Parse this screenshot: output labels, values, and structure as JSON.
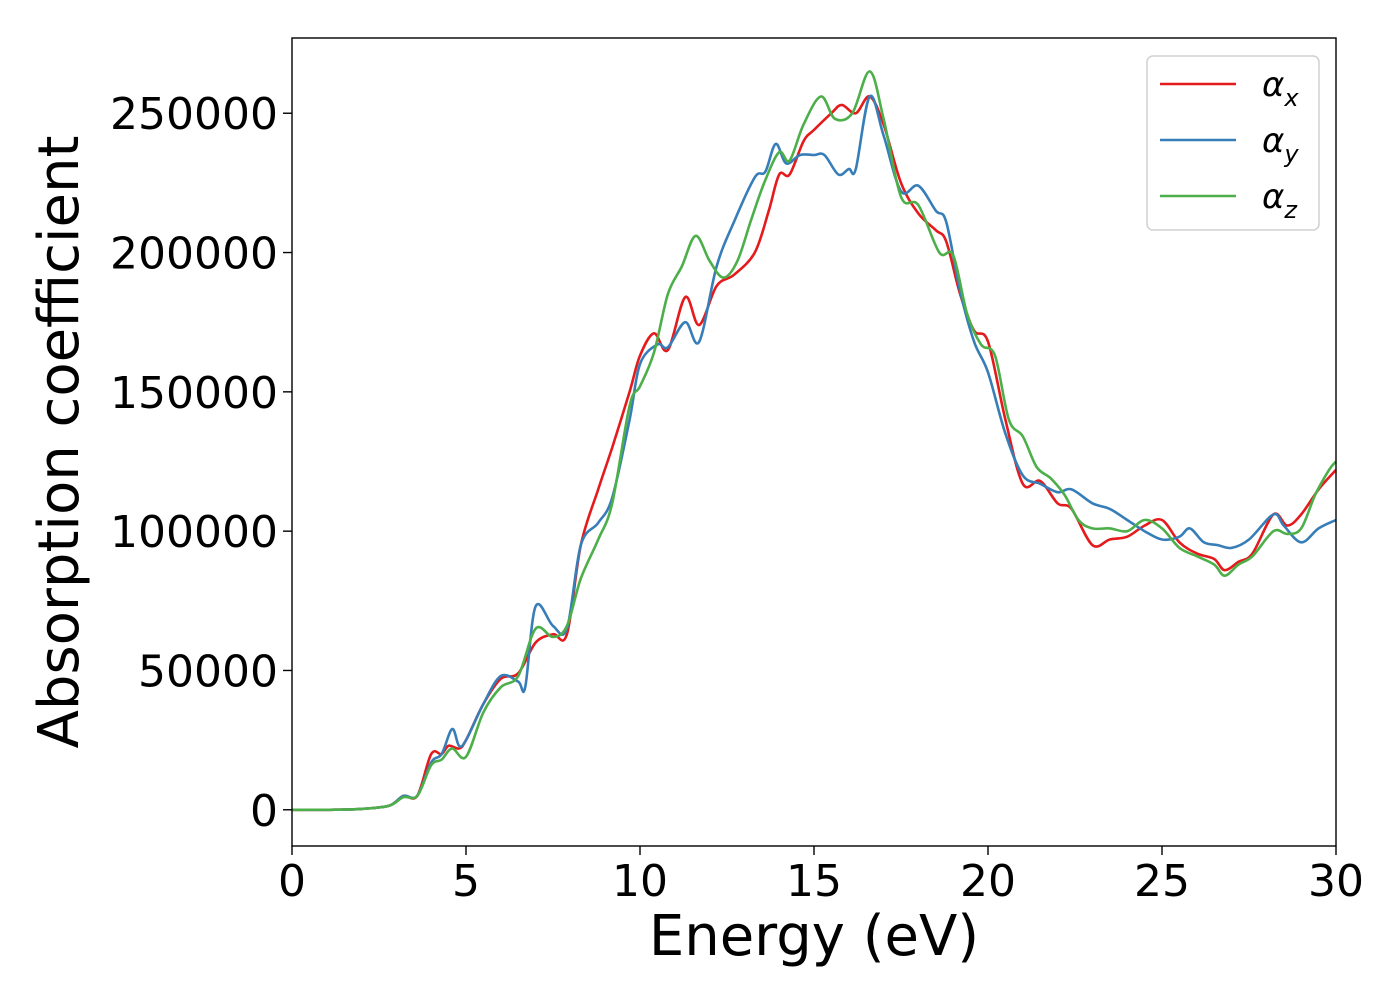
{
  "chart_data": {
    "type": "line",
    "title": "",
    "xlabel": "Energy (eV)",
    "ylabel": "Absorption coefficient",
    "xlim": [
      0,
      30
    ],
    "ylim": [
      -13000,
      277000
    ],
    "xticks": [
      0,
      5,
      10,
      15,
      20,
      25,
      30
    ],
    "xtick_labels": [
      "0",
      "5",
      "10",
      "15",
      "20",
      "25",
      "30"
    ],
    "yticks": [
      0,
      50000,
      100000,
      150000,
      200000,
      250000
    ],
    "ytick_labels": [
      "0",
      "50000",
      "100000",
      "150000",
      "200000",
      "250000"
    ],
    "grid": false,
    "legend_position": "top-right",
    "series": [
      {
        "name": "α_x",
        "label_base": "α",
        "label_sub": "x",
        "color": "#e41a1c",
        "points": [
          [
            0,
            0
          ],
          [
            1,
            0
          ],
          [
            2,
            300
          ],
          [
            2.8,
            1500
          ],
          [
            3.2,
            5000
          ],
          [
            3.6,
            5000
          ],
          [
            4,
            20000
          ],
          [
            4.3,
            20000
          ],
          [
            4.5,
            23000
          ],
          [
            4.8,
            22000
          ],
          [
            5,
            25000
          ],
          [
            5.5,
            38000
          ],
          [
            6,
            47000
          ],
          [
            6.5,
            49000
          ],
          [
            7,
            60000
          ],
          [
            7.5,
            63000
          ],
          [
            7.9,
            63000
          ],
          [
            8.3,
            95000
          ],
          [
            8.8,
            115000
          ],
          [
            9.2,
            130000
          ],
          [
            9.7,
            150000
          ],
          [
            10,
            163000
          ],
          [
            10.4,
            171000
          ],
          [
            10.8,
            165000
          ],
          [
            11.3,
            184000
          ],
          [
            11.7,
            174000
          ],
          [
            12.2,
            188000
          ],
          [
            12.7,
            192000
          ],
          [
            13.3,
            200000
          ],
          [
            13.7,
            215000
          ],
          [
            14,
            228000
          ],
          [
            14.3,
            228000
          ],
          [
            14.7,
            240000
          ],
          [
            15,
            244000
          ],
          [
            15.5,
            250000
          ],
          [
            15.8,
            253000
          ],
          [
            16.2,
            250000
          ],
          [
            16.6,
            256000
          ],
          [
            17,
            246000
          ],
          [
            17.5,
            225000
          ],
          [
            18,
            214000
          ],
          [
            18.5,
            208000
          ],
          [
            18.8,
            204000
          ],
          [
            19.2,
            185000
          ],
          [
            19.6,
            172000
          ],
          [
            20,
            168000
          ],
          [
            20.5,
            140000
          ],
          [
            21,
            117000
          ],
          [
            21.5,
            118000
          ],
          [
            22,
            110000
          ],
          [
            22.4,
            108000
          ],
          [
            23,
            95000
          ],
          [
            23.5,
            97000
          ],
          [
            24,
            98000
          ],
          [
            24.5,
            102000
          ],
          [
            25,
            104000
          ],
          [
            25.5,
            96000
          ],
          [
            26,
            92000
          ],
          [
            26.5,
            90000
          ],
          [
            26.8,
            86000
          ],
          [
            27.2,
            89000
          ],
          [
            27.6,
            92000
          ],
          [
            28.2,
            106000
          ],
          [
            28.6,
            102000
          ],
          [
            29,
            106000
          ],
          [
            29.5,
            115000
          ],
          [
            30,
            122000
          ]
        ]
      },
      {
        "name": "α_y",
        "label_base": "α",
        "label_sub": "y",
        "color": "#377eb8",
        "points": [
          [
            0,
            0
          ],
          [
            1,
            0
          ],
          [
            2,
            300
          ],
          [
            2.8,
            1500
          ],
          [
            3.2,
            5000
          ],
          [
            3.6,
            5000
          ],
          [
            4,
            17000
          ],
          [
            4.3,
            20000
          ],
          [
            4.6,
            29000
          ],
          [
            4.8,
            23000
          ],
          [
            5,
            25000
          ],
          [
            5.5,
            38000
          ],
          [
            6,
            48000
          ],
          [
            6.5,
            46000
          ],
          [
            6.7,
            44000
          ],
          [
            7,
            73000
          ],
          [
            7.5,
            66000
          ],
          [
            7.9,
            65000
          ],
          [
            8.3,
            95000
          ],
          [
            8.8,
            103000
          ],
          [
            9.2,
            112000
          ],
          [
            9.7,
            140000
          ],
          [
            10,
            160000
          ],
          [
            10.5,
            167000
          ],
          [
            10.8,
            166000
          ],
          [
            11.3,
            175000
          ],
          [
            11.7,
            168000
          ],
          [
            12.2,
            195000
          ],
          [
            12.7,
            211000
          ],
          [
            13.3,
            227000
          ],
          [
            13.6,
            229000
          ],
          [
            13.9,
            239000
          ],
          [
            14.2,
            232000
          ],
          [
            14.6,
            235000
          ],
          [
            15,
            235000
          ],
          [
            15.3,
            235000
          ],
          [
            15.7,
            228000
          ],
          [
            16,
            230000
          ],
          [
            16.2,
            230000
          ],
          [
            16.6,
            256000
          ],
          [
            17,
            242000
          ],
          [
            17.5,
            222000
          ],
          [
            18,
            224000
          ],
          [
            18.5,
            215000
          ],
          [
            18.8,
            211000
          ],
          [
            19.2,
            186000
          ],
          [
            19.6,
            168000
          ],
          [
            20,
            157000
          ],
          [
            20.5,
            135000
          ],
          [
            21,
            120000
          ],
          [
            21.5,
            117000
          ],
          [
            22,
            114000
          ],
          [
            22.4,
            115000
          ],
          [
            23,
            110000
          ],
          [
            23.5,
            108000
          ],
          [
            24,
            104000
          ],
          [
            24.5,
            100000
          ],
          [
            25,
            97000
          ],
          [
            25.5,
            98000
          ],
          [
            25.8,
            101000
          ],
          [
            26.2,
            96000
          ],
          [
            26.6,
            95000
          ],
          [
            27,
            94000
          ],
          [
            27.5,
            97000
          ],
          [
            28.2,
            106000
          ],
          [
            28.5,
            102000
          ],
          [
            29,
            96000
          ],
          [
            29.5,
            101000
          ],
          [
            30,
            104000
          ]
        ]
      },
      {
        "name": "α_z",
        "label_base": "α",
        "label_sub": "z",
        "color": "#4daf4a",
        "points": [
          [
            0,
            0
          ],
          [
            1,
            0
          ],
          [
            2,
            300
          ],
          [
            2.8,
            1500
          ],
          [
            3.2,
            4500
          ],
          [
            3.6,
            5000
          ],
          [
            4,
            16000
          ],
          [
            4.3,
            18000
          ],
          [
            4.6,
            22000
          ],
          [
            5,
            19000
          ],
          [
            5.5,
            35000
          ],
          [
            6,
            44000
          ],
          [
            6.5,
            48000
          ],
          [
            7,
            65000
          ],
          [
            7.5,
            62000
          ],
          [
            7.9,
            66000
          ],
          [
            8.3,
            83000
          ],
          [
            8.8,
            97000
          ],
          [
            9.2,
            110000
          ],
          [
            9.7,
            145000
          ],
          [
            10,
            152000
          ],
          [
            10.4,
            164000
          ],
          [
            10.8,
            185000
          ],
          [
            11.2,
            195000
          ],
          [
            11.6,
            206000
          ],
          [
            12,
            197000
          ],
          [
            12.4,
            191000
          ],
          [
            12.8,
            197000
          ],
          [
            13.2,
            212000
          ],
          [
            13.6,
            226000
          ],
          [
            14,
            236000
          ],
          [
            14.3,
            233000
          ],
          [
            14.7,
            246000
          ],
          [
            15.2,
            256000
          ],
          [
            15.6,
            248000
          ],
          [
            16.1,
            250000
          ],
          [
            16.6,
            265000
          ],
          [
            17,
            248000
          ],
          [
            17.5,
            220000
          ],
          [
            18,
            217000
          ],
          [
            18.6,
            200000
          ],
          [
            19,
            199000
          ],
          [
            19.4,
            178000
          ],
          [
            19.8,
            167000
          ],
          [
            20.2,
            163000
          ],
          [
            20.6,
            140000
          ],
          [
            21,
            134000
          ],
          [
            21.4,
            123000
          ],
          [
            21.8,
            119000
          ],
          [
            22.2,
            113000
          ],
          [
            22.6,
            104000
          ],
          [
            23,
            101000
          ],
          [
            23.5,
            101000
          ],
          [
            24,
            100000
          ],
          [
            24.5,
            104000
          ],
          [
            25,
            101000
          ],
          [
            25.5,
            94000
          ],
          [
            26,
            91000
          ],
          [
            26.5,
            88000
          ],
          [
            26.8,
            84000
          ],
          [
            27.2,
            88000
          ],
          [
            27.6,
            91000
          ],
          [
            28.2,
            100000
          ],
          [
            28.6,
            99000
          ],
          [
            29,
            101000
          ],
          [
            29.4,
            113000
          ],
          [
            29.8,
            122000
          ],
          [
            30,
            125000
          ]
        ]
      }
    ]
  }
}
